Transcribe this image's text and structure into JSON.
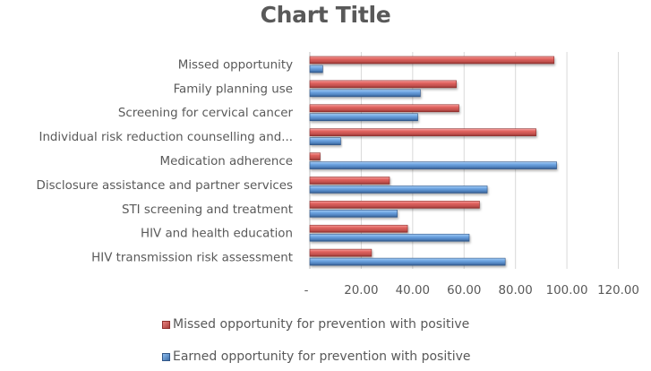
{
  "chart_data": {
    "type": "bar",
    "orientation": "horizontal",
    "title": "Chart Title",
    "xlabel": "",
    "ylabel": "",
    "xlim": [
      0,
      120
    ],
    "x_ticks": [
      "-",
      "20.00",
      "40.00",
      "60.00",
      "80.00",
      "100.00",
      "120.00"
    ],
    "x_tick_values": [
      0,
      20,
      40,
      60,
      80,
      100,
      120
    ],
    "grid": true,
    "legend_position": "bottom",
    "categories": [
      "Missed opportunity",
      "Family planning use",
      "Screening for cervical cancer",
      "Individual risk reduction counselling and...",
      "Medication adherence",
      "Disclosure assistance and partner services",
      "STI screening and treatment",
      "HIV and health education",
      "HIV transmission risk assessment"
    ],
    "series": [
      {
        "name": "Missed opportunity for prevention with positive",
        "color": "#C0504D",
        "values": [
          95,
          57,
          58,
          88,
          4,
          31,
          66,
          38,
          24
        ]
      },
      {
        "name": "Earned opportunity for prevention with positive",
        "color": "#4F81BD",
        "values": [
          5,
          43,
          42,
          12,
          96,
          69,
          34,
          62,
          76
        ]
      }
    ]
  }
}
